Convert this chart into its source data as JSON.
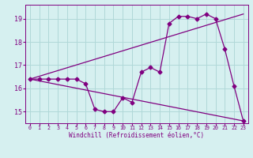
{
  "xlabel": "Windchill (Refroidissement éolien,°C)",
  "background_color": "#d6f0f0",
  "grid_color": "#b0d8d8",
  "line_color": "#800080",
  "xlim": [
    -0.5,
    23.5
  ],
  "ylim": [
    14.5,
    19.6
  ],
  "yticks": [
    15,
    16,
    17,
    18,
    19
  ],
  "xticks": [
    0,
    1,
    2,
    3,
    4,
    5,
    6,
    7,
    8,
    9,
    10,
    11,
    12,
    13,
    14,
    15,
    16,
    17,
    18,
    19,
    20,
    21,
    22,
    23
  ],
  "series1_x": [
    0,
    1,
    2,
    3,
    4,
    5,
    6,
    7,
    8,
    9,
    10,
    11,
    12,
    13,
    14,
    15,
    16,
    17,
    18,
    19,
    20,
    21,
    22,
    23
  ],
  "series1_y": [
    16.4,
    16.4,
    16.4,
    16.4,
    16.4,
    16.4,
    16.2,
    15.1,
    15.0,
    15.0,
    15.6,
    15.4,
    16.7,
    16.9,
    16.7,
    18.8,
    19.1,
    19.1,
    19.0,
    19.2,
    19.0,
    17.7,
    16.1,
    14.6
  ],
  "series2_x": [
    0,
    23
  ],
  "series2_y": [
    16.4,
    14.6
  ],
  "series3_x": [
    0,
    23
  ],
  "series3_y": [
    16.4,
    19.2
  ],
  "marker": "D",
  "markersize": 2.5,
  "linewidth": 0.9
}
